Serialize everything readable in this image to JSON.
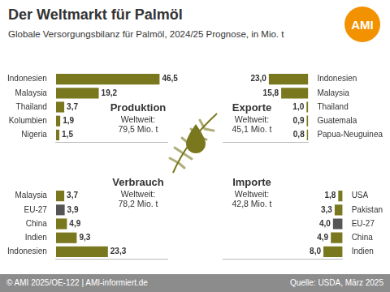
{
  "header": {
    "title": "Der Weltmarkt für Palmöl",
    "subtitle": "Globale Versorgungsbilanz für Palmöl, 2024/25 Prognose, in Mio. t",
    "logo": "AMI"
  },
  "footer": {
    "left": "© AMI 2025/OE-122 | AMI-informiert.de",
    "right": "Quelle: USDA, März 2025"
  },
  "chart_data": [
    {
      "type": "bar",
      "orientation": "horizontal",
      "title": "Produktion",
      "annotations": [
        "Weltweit:",
        "79,5 Mio. t"
      ],
      "categories": [
        "Indonesien",
        "Malaysia",
        "Thailand",
        "Kolumbien",
        "Nigeria"
      ],
      "values": [
        46.5,
        19.2,
        3.7,
        1.9,
        1.5
      ],
      "value_labels": [
        "46,5",
        "19,2",
        "3,7",
        "1,9",
        "1,5"
      ],
      "colors": [
        "#7a781f",
        "#7a781f",
        "#7a781f",
        "#7a781f",
        "#7a781f"
      ],
      "xlim": [
        0,
        50
      ],
      "grid": false,
      "data_labels": true,
      "tick_labels": "y"
    },
    {
      "type": "bar",
      "orientation": "horizontal",
      "title": "Exporte",
      "annotations": [
        "Weltweit:",
        "45,1 Mio. t"
      ],
      "categories": [
        "Indonesien",
        "Malaysia",
        "Thailand",
        "Guatemala",
        "Papua-Neuguinea"
      ],
      "values": [
        23.0,
        15.8,
        1.0,
        0.9,
        0.8
      ],
      "value_labels": [
        "23,0",
        "15,8",
        "1,0",
        "0,9",
        "0,8"
      ],
      "colors": [
        "#7a781f",
        "#7a781f",
        "#7a781f",
        "#7a781f",
        "#7a781f"
      ],
      "xlim": [
        0,
        50
      ],
      "grid": false,
      "data_labels": true,
      "tick_labels": "y"
    },
    {
      "type": "bar",
      "orientation": "horizontal",
      "title": "Verbrauch",
      "annotations": [
        "Weltweit:",
        "78,2 Mio. t"
      ],
      "categories": [
        "Malaysia",
        "EU-27",
        "China",
        "Indien",
        "Indonesien"
      ],
      "values": [
        3.7,
        3.9,
        4.9,
        9.3,
        23.3
      ],
      "value_labels": [
        "3,7",
        "3,9",
        "4,9",
        "9,3",
        "23,3"
      ],
      "colors": [
        "#7a781f",
        "#555555",
        "#7a781f",
        "#7a781f",
        "#7a781f"
      ],
      "xlim": [
        0,
        50
      ],
      "grid": false,
      "data_labels": true,
      "tick_labels": "y"
    },
    {
      "type": "bar",
      "orientation": "horizontal",
      "title": "Importe",
      "annotations": [
        "Weltweit:",
        "42,8 Mio. t"
      ],
      "categories": [
        "USA",
        "Pakistan",
        "EU-27",
        "China",
        "Indien"
      ],
      "values": [
        1.8,
        3.3,
        4.0,
        4.9,
        8.0
      ],
      "value_labels": [
        "1,8",
        "3,3",
        "4,0",
        "4,9",
        "8,0"
      ],
      "colors": [
        "#7a781f",
        "#7a781f",
        "#555555",
        "#7a781f",
        "#7a781f"
      ],
      "xlim": [
        0,
        50
      ],
      "grid": false,
      "data_labels": true,
      "tick_labels": "y"
    }
  ]
}
